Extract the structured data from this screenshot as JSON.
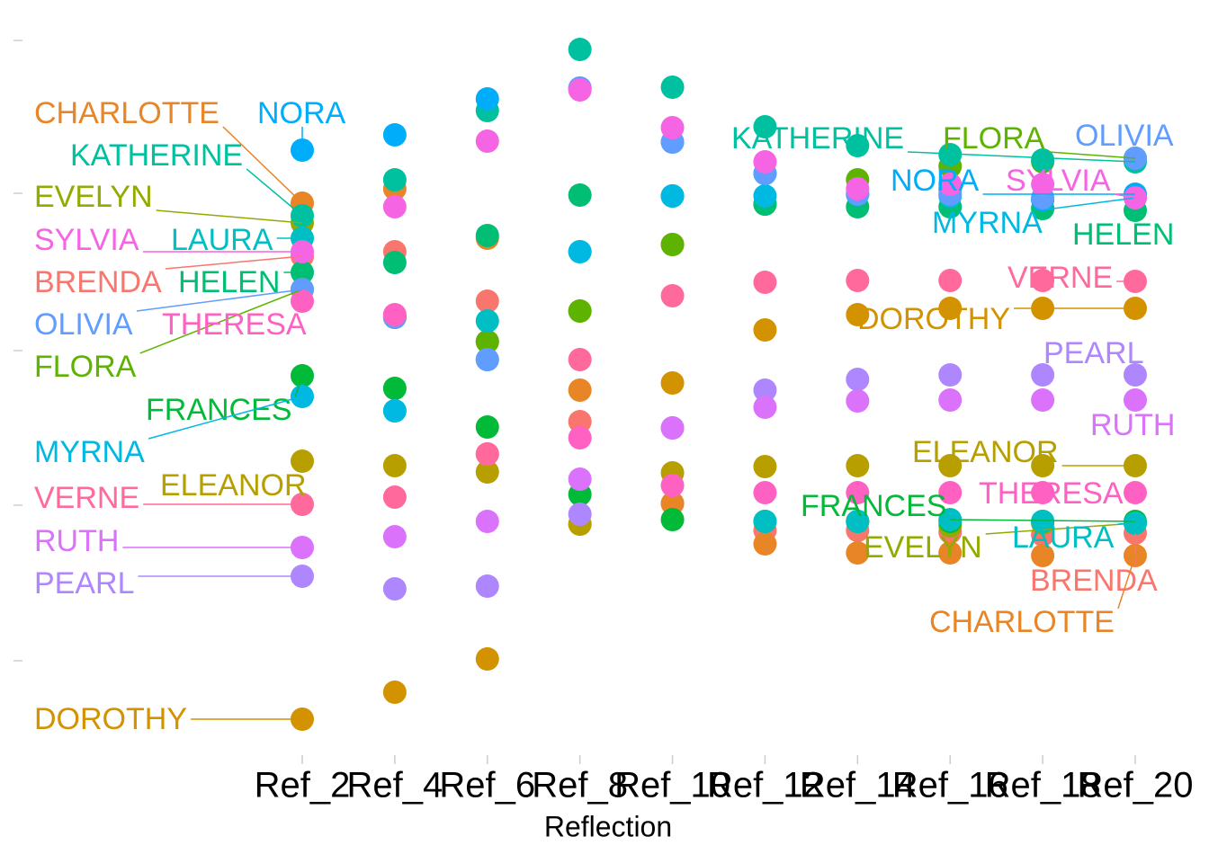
{
  "chart_data": {
    "type": "dot",
    "x_label": "Reflection",
    "categories": [
      "Ref_2",
      "Ref_4",
      "Ref_6",
      "Ref_8",
      "Ref_10",
      "Ref_12",
      "Ref_14",
      "Ref_16",
      "Ref_18",
      "Ref_20"
    ],
    "ylim": [
      -40,
      800
    ],
    "yticks": [
      65,
      238,
      410,
      585,
      755
    ],
    "series": [
      {
        "name": "BRENDA",
        "color": "#F8766D",
        "values": [
          515,
          520,
          465,
          331,
          240,
          210,
          210,
          208,
          205,
          207
        ]
      },
      {
        "name": "CHARLOTTE",
        "color": "#E88526",
        "values": [
          574,
          590,
          535,
          366,
          240,
          195,
          185,
          185,
          182,
          182
        ]
      },
      {
        "name": "DOROTHY",
        "color": "#D39200",
        "values": [
          0,
          30,
          67,
          217,
          374,
          433,
          450,
          457,
          457,
          457
        ]
      },
      {
        "name": "ELEANOR",
        "color": "#B79F00",
        "values": [
          287,
          282,
          275,
          217,
          274,
          281,
          282,
          282,
          282,
          282
        ]
      },
      {
        "name": "EVELYN",
        "color": "#93AA00",
        "values": [
          552,
          447,
          420,
          454,
          528,
          573,
          220,
          215,
          218,
          218
        ]
      },
      {
        "name": "FLORA",
        "color": "#5EB300",
        "values": [
          478,
          447,
          420,
          454,
          528,
          573,
          600,
          615,
          620,
          624
        ]
      },
      {
        "name": "FRANCES",
        "color": "#00BA38",
        "values": [
          382,
          368,
          325,
          250,
          222,
          220,
          220,
          220,
          220,
          220
        ]
      },
      {
        "name": "HELEN",
        "color": "#00BF74",
        "values": [
          497,
          508,
          538,
          583,
          582,
          573,
          570,
          570,
          568,
          566
        ]
      },
      {
        "name": "KATHERINE",
        "color": "#00C19F",
        "values": [
          560,
          600,
          677,
          745,
          703,
          659,
          638,
          628,
          622,
          620
        ]
      },
      {
        "name": "LAURA",
        "color": "#00BFC4",
        "values": [
          535,
          343,
          443,
          520,
          582,
          220,
          220,
          222,
          220,
          218
        ]
      },
      {
        "name": "MYRNA",
        "color": "#00B9E3",
        "values": [
          359,
          343,
          400,
          520,
          582,
          582,
          584,
          582,
          578,
          580
        ]
      },
      {
        "name": "NORA",
        "color": "#00ADFA",
        "values": [
          633,
          650,
          690,
          702,
          642,
          607,
          584,
          590,
          578,
          584
        ]
      },
      {
        "name": "OLIVIA",
        "color": "#619CFF",
        "values": [
          478,
          447,
          400,
          702,
          642,
          607,
          584,
          584,
          580,
          624
        ]
      },
      {
        "name": "PEARL",
        "color": "#AE87FF",
        "values": [
          159,
          145,
          148,
          228,
          324,
          366,
          378,
          383,
          383,
          383
        ]
      },
      {
        "name": "RUTH",
        "color": "#DB72FB",
        "values": [
          191,
          203,
          220,
          267,
          324,
          347,
          354,
          355,
          355,
          355
        ]
      },
      {
        "name": "SYLVIA",
        "color": "#F564E3",
        "values": [
          520,
          570,
          643,
          700,
          658,
          620,
          590,
          595,
          595,
          580
        ]
      },
      {
        "name": "THERESA",
        "color": "#FF61C3",
        "values": [
          465,
          450,
          295,
          313,
          260,
          252,
          252,
          252,
          252,
          252
        ]
      },
      {
        "name": "VERNE",
        "color": "#FF699C",
        "values": [
          239,
          247,
          295,
          400,
          471,
          486,
          488,
          488,
          488,
          487
        ]
      }
    ]
  }
}
